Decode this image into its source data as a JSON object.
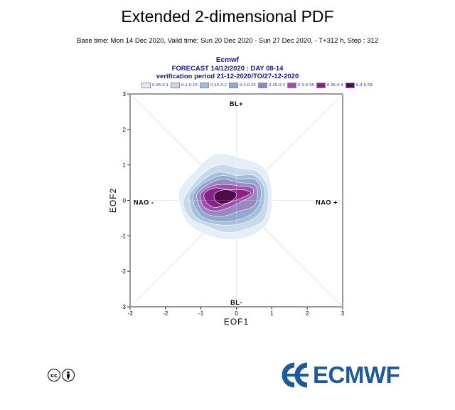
{
  "header": {
    "title": "Extended 2-dimensional PDF",
    "subtitle": "Base time: Mon 14 Dec 2020, Valid time: Sun 20 Dec 2020 - Sun 27 Dec 2020, - T+312 h, Step : 312"
  },
  "chart_data": {
    "type": "heatmap",
    "heading": {
      "line1": "Ecmwf",
      "line2": "FORECAST 14/12/2020 : DAY 08-14",
      "line3": "verification period 21-12-2020/TO/27-12-2020"
    },
    "xlabel": "EOF1",
    "ylabel": "EOF2",
    "xlim": [
      -3,
      3
    ],
    "ylim": [
      -3,
      3
    ],
    "x_ticks": [
      "-3",
      "-2",
      "-1",
      "0",
      "1",
      "2",
      "3"
    ],
    "y_ticks": [
      "-3",
      "-2",
      "-1",
      "0",
      "1",
      "2",
      "3"
    ],
    "regime_labels": {
      "top": "BL+",
      "bottom": "BL-",
      "left": "NAO -",
      "right": "NAO +"
    },
    "legend": [
      {
        "label": "0.05-0.1",
        "color": "#e4edf5"
      },
      {
        "label": "0.1-0.15",
        "color": "#c6d7e8"
      },
      {
        "label": "0.15-0.2",
        "color": "#a3bfdb"
      },
      {
        "label": "0.2-0.25",
        "color": "#8fa7cf"
      },
      {
        "label": "0.25-0.3",
        "color": "#9c84c2"
      },
      {
        "label": "0.3-0.35",
        "color": "#9c4ea8"
      },
      {
        "label": "0.35-0.4",
        "color": "#862186"
      },
      {
        "label": "0.4-0.59",
        "color": "#4d0a45"
      }
    ],
    "density_contours": [
      {
        "level": "0.05-0.1",
        "points": [
          [
            -1.6,
            0.3
          ],
          [
            -1.2,
            0.8
          ],
          [
            -0.6,
            1.3
          ],
          [
            0.1,
            1.2
          ],
          [
            0.8,
            0.9
          ],
          [
            1.0,
            0.2
          ],
          [
            0.9,
            -0.6
          ],
          [
            0.4,
            -1.0
          ],
          [
            -0.3,
            -1.1
          ],
          [
            -1.0,
            -0.9
          ],
          [
            -1.4,
            -0.6
          ],
          [
            -1.6,
            -0.1
          ]
        ]
      },
      {
        "level": "0.1-0.15",
        "points": [
          [
            -1.4,
            0.2
          ],
          [
            -1.0,
            0.7
          ],
          [
            -0.5,
            1.0
          ],
          [
            0.1,
            0.9
          ],
          [
            0.6,
            0.8
          ],
          [
            0.9,
            0.3
          ],
          [
            0.8,
            -0.5
          ],
          [
            0.3,
            -0.8
          ],
          [
            -0.3,
            -0.9
          ],
          [
            -0.9,
            -0.7
          ],
          [
            -1.3,
            -0.5
          ],
          [
            -1.5,
            -0.1
          ]
        ]
      },
      {
        "level": "0.15-0.2",
        "points": [
          [
            -1.3,
            0.2
          ],
          [
            -0.9,
            0.6
          ],
          [
            -0.5,
            0.8
          ],
          [
            0.0,
            0.7
          ],
          [
            0.5,
            0.7
          ],
          [
            0.8,
            0.3
          ],
          [
            0.7,
            -0.3
          ],
          [
            0.3,
            -0.6
          ],
          [
            -0.3,
            -0.7
          ],
          [
            -0.9,
            -0.6
          ],
          [
            -1.2,
            -0.4
          ],
          [
            -1.3,
            -0.1
          ]
        ]
      },
      {
        "level": "0.2-0.25",
        "points": [
          [
            -1.2,
            0.2
          ],
          [
            -0.9,
            0.5
          ],
          [
            -0.4,
            0.7
          ],
          [
            0.1,
            0.6
          ],
          [
            0.5,
            0.6
          ],
          [
            0.7,
            0.3
          ],
          [
            0.6,
            -0.2
          ],
          [
            0.2,
            -0.5
          ],
          [
            -0.4,
            -0.6
          ],
          [
            -0.9,
            -0.5
          ],
          [
            -1.1,
            -0.3
          ],
          [
            -1.2,
            -0.1
          ]
        ]
      },
      {
        "level": "0.25-0.3",
        "points": [
          [
            -1.1,
            0.2
          ],
          [
            -0.8,
            0.45
          ],
          [
            -0.4,
            0.6
          ],
          [
            0.1,
            0.5
          ],
          [
            0.5,
            0.45
          ],
          [
            0.6,
            0.2
          ],
          [
            0.5,
            -0.15
          ],
          [
            0.1,
            -0.3
          ],
          [
            -0.4,
            -0.45
          ],
          [
            -0.8,
            -0.4
          ],
          [
            -1.0,
            -0.25
          ],
          [
            -1.1,
            0.0
          ]
        ]
      },
      {
        "level": "0.3-0.35",
        "points": [
          [
            -1.0,
            0.2
          ],
          [
            -0.7,
            0.4
          ],
          [
            -0.3,
            0.45
          ],
          [
            0.1,
            0.4
          ],
          [
            0.45,
            0.35
          ],
          [
            0.45,
            0.15
          ],
          [
            0.2,
            0.0
          ],
          [
            -0.2,
            -0.2
          ],
          [
            -0.6,
            -0.3
          ],
          [
            -0.9,
            -0.2
          ],
          [
            -1.0,
            0.0
          ]
        ]
      },
      {
        "level": "0.35-0.4",
        "points": [
          [
            -0.9,
            0.2
          ],
          [
            -0.6,
            0.35
          ],
          [
            -0.2,
            0.3
          ],
          [
            0.2,
            0.3
          ],
          [
            0.4,
            0.2
          ],
          [
            0.1,
            0.05
          ],
          [
            -0.3,
            -0.1
          ],
          [
            -0.6,
            -0.2
          ],
          [
            -0.85,
            -0.05
          ]
        ]
      },
      {
        "level": "0.4-0.59",
        "points": [
          [
            -0.6,
            0.2
          ],
          [
            -0.3,
            0.3
          ],
          [
            0.0,
            0.2
          ],
          [
            -0.1,
            0.0
          ],
          [
            -0.4,
            -0.1
          ],
          [
            -0.6,
            0.0
          ]
        ]
      }
    ]
  },
  "footer": {
    "cc_icon": "creative-commons-icon",
    "attribution_icon": "attribution-person-icon",
    "logo_text": "ECMWF",
    "logo_color": "#1d5a9a"
  }
}
